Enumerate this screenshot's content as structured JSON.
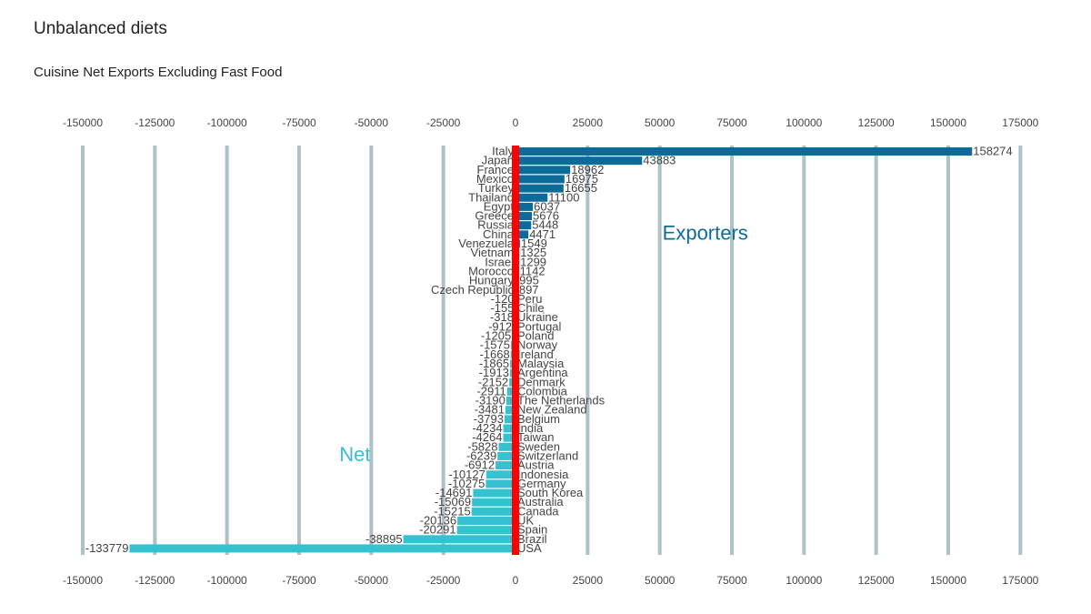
{
  "title": "Unbalanced diets",
  "subtitle": "Cuisine Net Exports Excluding Fast Food",
  "chart_data": {
    "type": "bar",
    "orientation": "horizontal",
    "xlim": [
      -150000,
      175000
    ],
    "x_ticks": [
      -150000,
      -125000,
      -100000,
      -75000,
      -50000,
      -25000,
      0,
      25000,
      50000,
      75000,
      100000,
      125000,
      150000,
      175000
    ],
    "grid": true,
    "colors": {
      "exporters": "#0d6b9a",
      "net_importers": "#35c2d0",
      "zero_line": "#ff0000",
      "grid": "#b0c0c8"
    },
    "annotations": [
      {
        "text": "Exporters",
        "x": 50000,
        "row": 9,
        "color": "#0d6b9a"
      },
      {
        "text": "Net",
        "x": -62000,
        "row": 33,
        "color": "#35c2d0"
      }
    ],
    "categories": [
      "Italy",
      "Japan",
      "France",
      "Mexico",
      "Turkey",
      "Thailand",
      "Egypt",
      "Greece",
      "Russia",
      "China",
      "Venezuela",
      "Vietnam",
      "Israel",
      "Morocco",
      "Hungary",
      "Czech Republic",
      "Peru",
      "Chile",
      "Ukraine",
      "Portugal",
      "Poland",
      "Norway",
      "Ireland",
      "Malaysia",
      "Argentina",
      "Denmark",
      "Colombia",
      "The Netherlands",
      "New Zealand",
      "Belgium",
      "India",
      "Taiwan",
      "Sweden",
      "Switzerland",
      "Austria",
      "Indonesia",
      "Germany",
      "South Korea",
      "Australia",
      "Canada",
      "UK",
      "Spain",
      "Brazil",
      "USA"
    ],
    "values": [
      158274,
      43883,
      18962,
      16975,
      16655,
      11100,
      6037,
      5676,
      5448,
      4471,
      1549,
      1325,
      1299,
      1142,
      995,
      897,
      -120,
      -155,
      -318,
      -912,
      -1205,
      -1575,
      -1668,
      -1865,
      -1913,
      -2152,
      -2911,
      -3190,
      -3481,
      -3793,
      -4234,
      -4264,
      -5828,
      -6239,
      -6912,
      -10127,
      -10275,
      -14691,
      -15069,
      -15215,
      -20136,
      -20291,
      -38895,
      -133779
    ]
  }
}
